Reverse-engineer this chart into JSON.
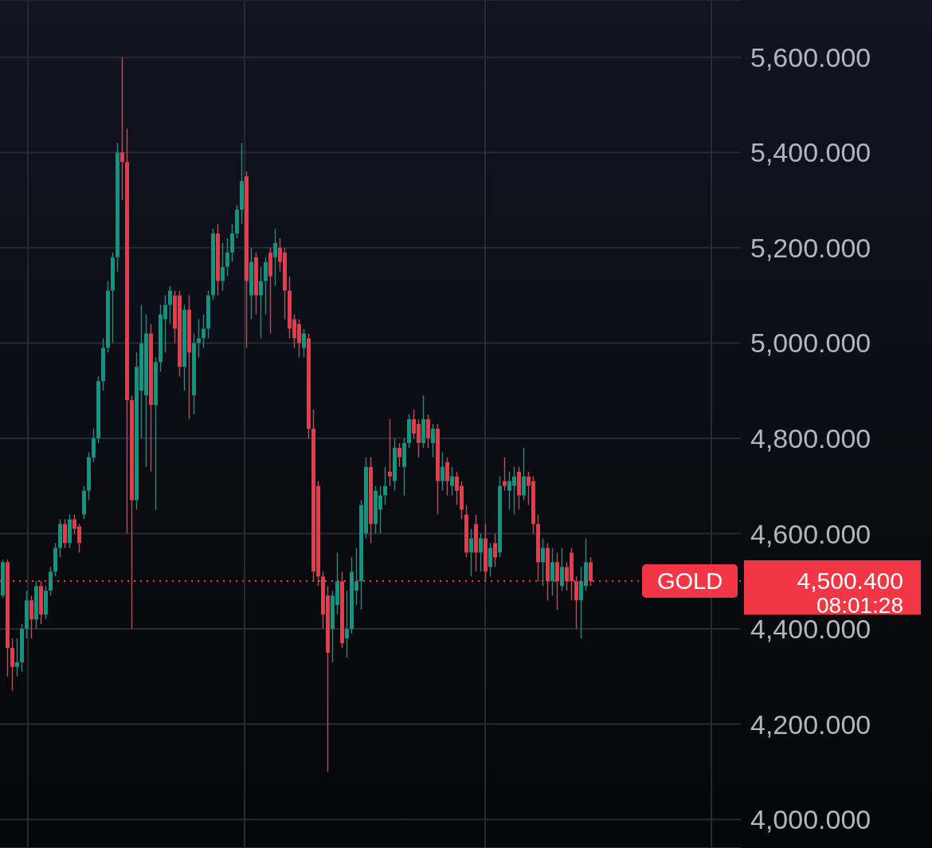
{
  "chart_data": {
    "type": "candlestick",
    "categories": [
      null,
      null,
      null,
      null,
      null,
      null,
      null,
      null,
      null,
      null,
      null,
      null,
      null,
      null,
      null,
      null,
      null,
      null,
      null,
      null,
      null,
      null,
      null,
      null,
      null,
      null,
      null,
      null,
      null,
      null,
      null,
      null,
      null,
      null,
      null,
      null,
      null,
      null,
      null,
      null,
      null,
      null,
      null,
      null,
      null,
      null,
      null,
      null,
      null,
      null,
      null,
      null,
      null,
      null,
      null,
      null,
      null,
      null,
      null,
      null,
      null,
      null,
      null,
      null,
      null,
      null,
      null,
      null,
      null,
      null,
      null,
      null,
      null,
      null,
      null,
      null,
      null,
      null,
      null,
      null,
      null,
      null,
      null,
      null,
      null,
      null,
      null,
      null,
      null,
      null,
      null,
      null,
      null,
      null,
      null,
      null,
      null,
      null,
      null,
      null,
      null,
      null,
      null,
      null,
      null,
      null,
      null,
      null,
      null,
      null,
      null,
      null,
      null,
      null,
      null,
      null,
      null,
      null,
      null,
      null,
      null,
      null,
      null,
      null,
      null,
      null,
      null,
      null,
      null,
      null,
      null,
      null,
      null,
      null,
      null,
      null,
      null,
      null,
      null,
      null,
      null,
      null,
      null,
      null,
      null,
      null,
      null,
      null,
      null,
      null,
      null,
      null,
      null,
      null,
      null
    ],
    "ohlc": [
      [
        4470,
        4545,
        4465,
        4540
      ],
      [
        4540,
        4545,
        4300,
        4360
      ],
      [
        4360,
        4380,
        4270,
        4320
      ],
      [
        4320,
        4380,
        4300,
        4330
      ],
      [
        4330,
        4410,
        4310,
        4400
      ],
      [
        4400,
        4480,
        4380,
        4460
      ],
      [
        4460,
        4470,
        4380,
        4420
      ],
      [
        4420,
        4500,
        4400,
        4490
      ],
      [
        4490,
        4500,
        4410,
        4430
      ],
      [
        4430,
        4490,
        4420,
        4480
      ],
      [
        4480,
        4530,
        4470,
        4520
      ],
      [
        4520,
        4580,
        4510,
        4570
      ],
      [
        4570,
        4630,
        4550,
        4620
      ],
      [
        4620,
        4630,
        4570,
        4580
      ],
      [
        4580,
        4640,
        4570,
        4630
      ],
      [
        4630,
        4640,
        4600,
        4610
      ],
      [
        4615,
        4620,
        4560,
        4580
      ],
      [
        4640,
        4700,
        4630,
        4690
      ],
      [
        4690,
        4770,
        4670,
        4760
      ],
      [
        4760,
        4820,
        4750,
        4800
      ],
      [
        4800,
        4930,
        4790,
        4920
      ],
      [
        4920,
        5010,
        4900,
        4990
      ],
      [
        4990,
        5130,
        4980,
        5110
      ],
      [
        5110,
        5190,
        5000,
        5180
      ],
      [
        5180,
        5420,
        5150,
        5400
      ],
      [
        5400,
        5600,
        5300,
        5380
      ],
      [
        5380,
        5450,
        4600,
        4880
      ],
      [
        4880,
        4890,
        4400,
        4670
      ],
      [
        4670,
        4980,
        4650,
        4950
      ],
      [
        4900,
        5080,
        4800,
        5000
      ],
      [
        4890,
        5060,
        4740,
        5020
      ],
      [
        5020,
        5040,
        4730,
        4870
      ],
      [
        4870,
        4970,
        4650,
        4960
      ],
      [
        4960,
        5080,
        4940,
        5060
      ],
      [
        5050,
        5100,
        4980,
        5080
      ],
      [
        5080,
        5120,
        5040,
        5110
      ],
      [
        5100,
        5110,
        5000,
        5030
      ],
      [
        5100,
        5110,
        4930,
        4950
      ],
      [
        4950,
        5080,
        4900,
        5070
      ],
      [
        5070,
        5100,
        4840,
        4980
      ],
      [
        4890,
        5020,
        4850,
        5000
      ],
      [
        5000,
        5050,
        4970,
        5010
      ],
      [
        5010,
        5060,
        4990,
        5030
      ],
      [
        5030,
        5110,
        5010,
        5100
      ],
      [
        5100,
        5240,
        5090,
        5230
      ],
      [
        5230,
        5250,
        5100,
        5130
      ],
      [
        5130,
        5210,
        5110,
        5160
      ],
      [
        5160,
        5220,
        5140,
        5190
      ],
      [
        5190,
        5250,
        5170,
        5230
      ],
      [
        5230,
        5290,
        5220,
        5280
      ],
      [
        5280,
        5420,
        5250,
        5340
      ],
      [
        5350,
        5360,
        4990,
        5130
      ],
      [
        5100,
        5200,
        5050,
        5170
      ],
      [
        5180,
        5190,
        5060,
        5100
      ],
      [
        5100,
        5160,
        5010,
        5130
      ],
      [
        5130,
        5180,
        5060,
        5170
      ],
      [
        5190,
        5200,
        5020,
        5140
      ],
      [
        5180,
        5240,
        5120,
        5210
      ],
      [
        5200,
        5220,
        5150,
        5170
      ],
      [
        5190,
        5200,
        5050,
        5110
      ],
      [
        5110,
        5140,
        5010,
        5030
      ],
      [
        5050,
        5060,
        4990,
        5010
      ],
      [
        5040,
        5050,
        4970,
        5000
      ],
      [
        4990,
        5030,
        4970,
        5020
      ],
      [
        5010,
        5020,
        4800,
        4820
      ],
      [
        4820,
        4860,
        4500,
        4520
      ],
      [
        4700,
        4710,
        4490,
        4510
      ],
      [
        4510,
        4520,
        4400,
        4430
      ],
      [
        4470,
        4490,
        4100,
        4350
      ],
      [
        4400,
        4480,
        4330,
        4470
      ],
      [
        4450,
        4560,
        4430,
        4500
      ],
      [
        4500,
        4520,
        4360,
        4370
      ],
      [
        4380,
        4480,
        4340,
        4400
      ],
      [
        4400,
        4550,
        4390,
        4520
      ],
      [
        4480,
        4570,
        4450,
        4500
      ],
      [
        4500,
        4670,
        4440,
        4660
      ],
      [
        4600,
        4760,
        4590,
        4740
      ],
      [
        4740,
        4760,
        4580,
        4620
      ],
      [
        4620,
        4700,
        4600,
        4690
      ],
      [
        4650,
        4700,
        4600,
        4680
      ],
      [
        4680,
        4740,
        4660,
        4700
      ],
      [
        4730,
        4840,
        4700,
        4720
      ],
      [
        4710,
        4800,
        4690,
        4780
      ],
      [
        4780,
        4790,
        4740,
        4760
      ],
      [
        4740,
        4800,
        4680,
        4790
      ],
      [
        4790,
        4850,
        4780,
        4840
      ],
      [
        4840,
        4860,
        4800,
        4810
      ],
      [
        4830,
        4840,
        4760,
        4790
      ],
      [
        4790,
        4890,
        4780,
        4840
      ],
      [
        4840,
        4850,
        4780,
        4800
      ],
      [
        4790,
        4830,
        4760,
        4820
      ],
      [
        4820,
        4830,
        4640,
        4710
      ],
      [
        4710,
        4770,
        4690,
        4740
      ],
      [
        4750,
        4760,
        4680,
        4710
      ],
      [
        4700,
        4740,
        4680,
        4720
      ],
      [
        4720,
        4730,
        4660,
        4690
      ],
      [
        4700,
        4710,
        4630,
        4650
      ],
      [
        4640,
        4660,
        4550,
        4560
      ],
      [
        4560,
        4610,
        4510,
        4590
      ],
      [
        4620,
        4640,
        4520,
        4560
      ],
      [
        4560,
        4600,
        4520,
        4590
      ],
      [
        4590,
        4620,
        4500,
        4520
      ],
      [
        4530,
        4580,
        4510,
        4570
      ],
      [
        4580,
        4600,
        4530,
        4550
      ],
      [
        4560,
        4720,
        4550,
        4700
      ],
      [
        4710,
        4760,
        4690,
        4700
      ],
      [
        4690,
        4730,
        4650,
        4710
      ],
      [
        4700,
        4740,
        4640,
        4720
      ],
      [
        4730,
        4740,
        4650,
        4680
      ],
      [
        4680,
        4780,
        4670,
        4720
      ],
      [
        4720,
        4730,
        4660,
        4700
      ],
      [
        4710,
        4720,
        4600,
        4620
      ],
      [
        4620,
        4640,
        4500,
        4540
      ],
      [
        4540,
        4590,
        4490,
        4570
      ],
      [
        4570,
        4580,
        4460,
        4500
      ],
      [
        4500,
        4570,
        4470,
        4540
      ],
      [
        4540,
        4560,
        4440,
        4500
      ],
      [
        4490,
        4570,
        4480,
        4530
      ],
      [
        4530,
        4540,
        4480,
        4500
      ],
      [
        4560,
        4570,
        4460,
        4500
      ],
      [
        4500,
        4510,
        4400,
        4460
      ],
      [
        4460,
        4530,
        4380,
        4500
      ],
      [
        4490,
        4590,
        4480,
        4540
      ],
      [
        4540,
        4550,
        4490,
        4500.4
      ],
      null,
      null,
      null,
      null,
      null,
      null,
      null,
      null,
      null,
      null,
      null,
      null,
      null,
      null,
      null,
      null,
      null,
      null,
      null,
      null,
      null,
      null,
      null,
      null,
      null,
      null,
      null,
      null,
      null,
      null,
      null
    ],
    "colors": [
      "#089981",
      "#f23645",
      "#f23645",
      "#089981",
      "#089981",
      "#089981",
      "#f23645",
      "#089981",
      "#f23645",
      "#089981",
      "#089981",
      "#089981",
      "#089981",
      "#f23645",
      "#089981",
      "#f23645",
      "#f23645",
      "#089981",
      "#089981",
      "#089981",
      "#089981",
      "#089981",
      "#089981",
      "#089981",
      "#089981",
      "#f23645",
      "#f23645",
      "#f23645",
      "#089981",
      "#089981",
      "#089981",
      "#f23645",
      "#089981",
      "#089981",
      "#089981",
      "#089981",
      "#f23645",
      "#f23645",
      "#089981",
      "#f23645",
      "#089981",
      "#089981",
      "#089981",
      "#089981",
      "#089981",
      "#f23645",
      "#089981",
      "#089981",
      "#089981",
      "#089981",
      "#089981",
      "#f23645",
      "#089981",
      "#f23645",
      "#089981",
      "#089981",
      "#f23645",
      "#089981",
      "#f23645",
      "#f23645",
      "#f23645",
      "#f23645",
      "#f23645",
      "#089981",
      "#f23645",
      "#f23645",
      "#f23645",
      "#f23645",
      "#f23645",
      "#089981",
      "#089981",
      "#f23645",
      "#089981",
      "#089981",
      "#089981",
      "#089981",
      "#089981",
      "#f23645",
      "#089981",
      "#089981",
      "#089981",
      "#f23645",
      "#089981",
      "#f23645",
      "#089981",
      "#089981",
      "#f23645",
      "#f23645",
      "#089981",
      "#f23645",
      "#089981",
      "#f23645",
      "#089981",
      "#f23645",
      "#089981",
      "#f23645",
      "#f23645",
      "#f23645",
      "#089981",
      "#f23645",
      "#089981",
      "#f23645",
      "#089981",
      "#f23645",
      "#089981",
      "#f23645",
      "#089981",
      "#089981",
      "#f23645",
      "#089981",
      "#f23645",
      "#f23645",
      "#f23645",
      "#089981",
      "#f23645",
      "#089981",
      "#f23645",
      "#089981",
      "#f23645",
      "#f23645",
      "#f23645",
      "#089981",
      "#089981",
      "#f23645",
      null,
      null,
      null,
      null,
      null,
      null,
      null,
      null,
      null,
      null,
      null,
      null,
      null,
      null,
      null,
      null,
      null,
      null,
      null,
      null,
      null,
      null,
      null,
      null,
      null,
      null,
      null,
      null,
      null,
      null,
      null
    ],
    "ylim": [
      3940,
      5720
    ],
    "yticks": [
      {
        "value": 4000,
        "label": "4,000.000"
      },
      {
        "value": 4200,
        "label": "4,200.000"
      },
      {
        "value": 4400,
        "label": "4,400.000"
      },
      {
        "value": 4600,
        "label": "4,600.000"
      },
      {
        "value": 4800,
        "label": "4,800.000"
      },
      {
        "value": 5000,
        "label": "5,000.000"
      },
      {
        "value": 5200,
        "label": "5,200.000"
      },
      {
        "value": 5400,
        "label": "5,400.000"
      },
      {
        "value": 5600,
        "label": "5,600.000"
      }
    ],
    "grid": true,
    "tick_labels": "y",
    "ref_lines": [
      {
        "axis": "y",
        "value": 4500.4,
        "label": "GOLD",
        "color": "#f23645",
        "line_style": "dotted"
      }
    ],
    "annotations": [
      "4,500.400",
      "08:01:28"
    ]
  }
}
